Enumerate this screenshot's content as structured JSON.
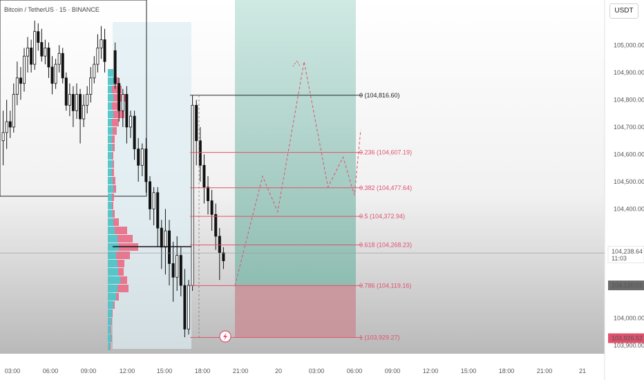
{
  "header": {
    "symbol_text": "Bitcoin / TetherUS · 15 · BINANCE"
  },
  "currency_label": "USDT",
  "chart_data": {
    "type": "candlestick",
    "title": "Bitcoin / TetherUS · 15 · BINANCE",
    "ylim": [
      103900,
      105120
    ],
    "y_ticks": [
      {
        "value": 105000,
        "label": "105,000.00"
      },
      {
        "value": 104900,
        "label": "104,900.00"
      },
      {
        "value": 104800,
        "label": "104,800.00"
      },
      {
        "value": 104700,
        "label": "104,700.00"
      },
      {
        "value": 104600,
        "label": "104,600.00"
      },
      {
        "value": 104500,
        "label": "104,500.00"
      },
      {
        "value": 104400,
        "label": "104,400.00"
      },
      {
        "value": 104000,
        "label": "104,000.00"
      },
      {
        "value": 103900,
        "label": "103,900.00"
      }
    ],
    "x_ticks": [
      "03:00",
      "06:00",
      "09:00",
      "12:00",
      "15:00",
      "18:00",
      "21:00",
      "20",
      "03:00",
      "06:00",
      "09:00",
      "12:00",
      "15:00",
      "18:00",
      "21:00",
      "21"
    ],
    "current_price": {
      "label": "104,238.64",
      "countdown": "11:03",
      "value": 104238.64
    },
    "price_badges": [
      {
        "label": "104,120.01",
        "value": 104120.01,
        "color": "#6b6b6b"
      },
      {
        "label": "103,926.52",
        "value": 103926.52,
        "color": "#e0516e"
      }
    ],
    "fib_levels": [
      {
        "label": "0 (104,816.60)",
        "value": 104816.6,
        "color": "#222222"
      },
      {
        "label": "0.236 (104,607.19)",
        "value": 104607.19,
        "color": "#e0516e"
      },
      {
        "label": "0.382 (104,477.64)",
        "value": 104477.64,
        "color": "#e0516e"
      },
      {
        "label": "0.5 (104,372.94)",
        "value": 104372.94,
        "color": "#e0516e"
      },
      {
        "label": "0.618 (104,268.23)",
        "value": 104268.23,
        "color": "#e0516e"
      },
      {
        "label": "0.786 (104,119.16)",
        "value": 104119.16,
        "color": "#e0516e"
      },
      {
        "label": "1 (103,929.27)",
        "value": 103929.27,
        "color": "#e0516e"
      }
    ],
    "candles": [
      [
        104650,
        104680,
        104560,
        104760
      ],
      [
        104680,
        104720,
        104620,
        104800
      ],
      [
        104720,
        104700,
        104660,
        104760
      ],
      [
        104700,
        104820,
        104680,
        104860
      ],
      [
        104820,
        104880,
        104780,
        104940
      ],
      [
        104880,
        104860,
        104800,
        104920
      ],
      [
        104860,
        104960,
        104830,
        104990
      ],
      [
        104960,
        104990,
        104900,
        105030
      ],
      [
        104990,
        104930,
        104900,
        105020
      ],
      [
        104930,
        105050,
        104910,
        105090
      ],
      [
        105050,
        105010,
        104980,
        105080
      ],
      [
        105010,
        104960,
        104940,
        105060
      ],
      [
        104960,
        104990,
        104930,
        105020
      ],
      [
        104990,
        104920,
        104880,
        105010
      ],
      [
        104920,
        104860,
        104820,
        104960
      ],
      [
        104860,
        104930,
        104840,
        104950
      ],
      [
        104930,
        104970,
        104900,
        105000
      ],
      [
        104970,
        104880,
        104860,
        104990
      ],
      [
        104880,
        104780,
        104760,
        104900
      ],
      [
        104780,
        104820,
        104740,
        104860
      ],
      [
        104820,
        104760,
        104700,
        104850
      ],
      [
        104760,
        104820,
        104730,
        104860
      ],
      [
        104820,
        104730,
        104640,
        104840
      ],
      [
        104730,
        104780,
        104700,
        104820
      ],
      [
        104780,
        104820,
        104750,
        104850
      ],
      [
        104820,
        104880,
        104790,
        104920
      ],
      [
        104880,
        104930,
        104860,
        104960
      ],
      [
        104930,
        104990,
        104900,
        105040
      ],
      [
        104990,
        105020,
        104950,
        105070
      ],
      [
        105020,
        104940,
        104900,
        105060
      ]
    ],
    "projection_path": [
      [
        104119,
        0
      ],
      [
        104520,
        0.22
      ],
      [
        104390,
        0.34
      ],
      [
        104940,
        0.55
      ],
      [
        104480,
        0.74
      ],
      [
        104590,
        0.86
      ],
      [
        104450,
        0.95
      ],
      [
        104690,
        1.0
      ]
    ],
    "annotations": [
      "20"
    ]
  }
}
